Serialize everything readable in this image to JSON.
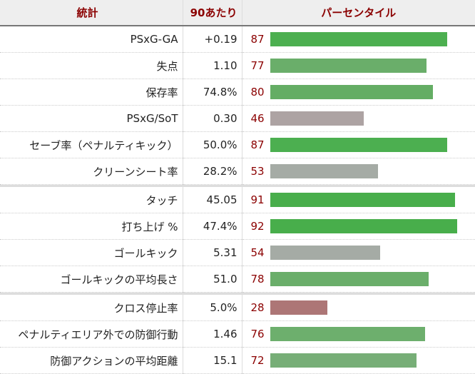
{
  "header": {
    "stat_label": "統計",
    "per90_label": "90あたり",
    "percentile_label": "パーセンタイル"
  },
  "colors": {
    "header_text": "#8b0000",
    "percentile_text": "#8b0000",
    "bar_high": "#4caf50",
    "bar_good": "#6aae6a",
    "bar_neutral": "#a5aba5",
    "bar_neutral_warm": "#ada3a3",
    "bar_low": "#ad7676"
  },
  "sections": [
    {
      "rows": [
        {
          "stat": "PSxG-GA",
          "per90": "+0.19",
          "percentile": "87",
          "color": "#4caf50"
        },
        {
          "stat": "失点",
          "per90": "1.10",
          "percentile": "77",
          "color": "#6aae6a"
        },
        {
          "stat": "保存率",
          "per90": "74.8%",
          "percentile": "80",
          "color": "#64ad64"
        },
        {
          "stat": "PSxG/SoT",
          "per90": "0.30",
          "percentile": "46",
          "color": "#ada3a3"
        },
        {
          "stat": "セーブ率（ペナルティキック）",
          "per90": "50.0%",
          "percentile": "87",
          "color": "#4caf50"
        },
        {
          "stat": "クリーンシート率",
          "per90": "28.2%",
          "percentile": "53",
          "color": "#a5aba5"
        }
      ]
    },
    {
      "rows": [
        {
          "stat": "タッチ",
          "per90": "45.05",
          "percentile": "91",
          "color": "#48ae4b"
        },
        {
          "stat": "打ち上げ %",
          "per90": "47.4%",
          "percentile": "92",
          "color": "#48ae4b"
        },
        {
          "stat": "ゴールキック",
          "per90": "5.31",
          "percentile": "54",
          "color": "#a5aba5"
        },
        {
          "stat": "ゴールキックの平均長さ",
          "per90": "51.0",
          "percentile": "78",
          "color": "#6aae6a"
        }
      ]
    },
    {
      "rows": [
        {
          "stat": "クロス停止率",
          "per90": "5.0%",
          "percentile": "28",
          "color": "#ad7676"
        },
        {
          "stat": "ペナルティエリア外での防御行動",
          "per90": "1.46",
          "percentile": "76",
          "color": "#6daf6d"
        },
        {
          "stat": "防御アクションの平均距離",
          "per90": "15.1",
          "percentile": "72",
          "color": "#77ae77"
        }
      ]
    }
  ]
}
